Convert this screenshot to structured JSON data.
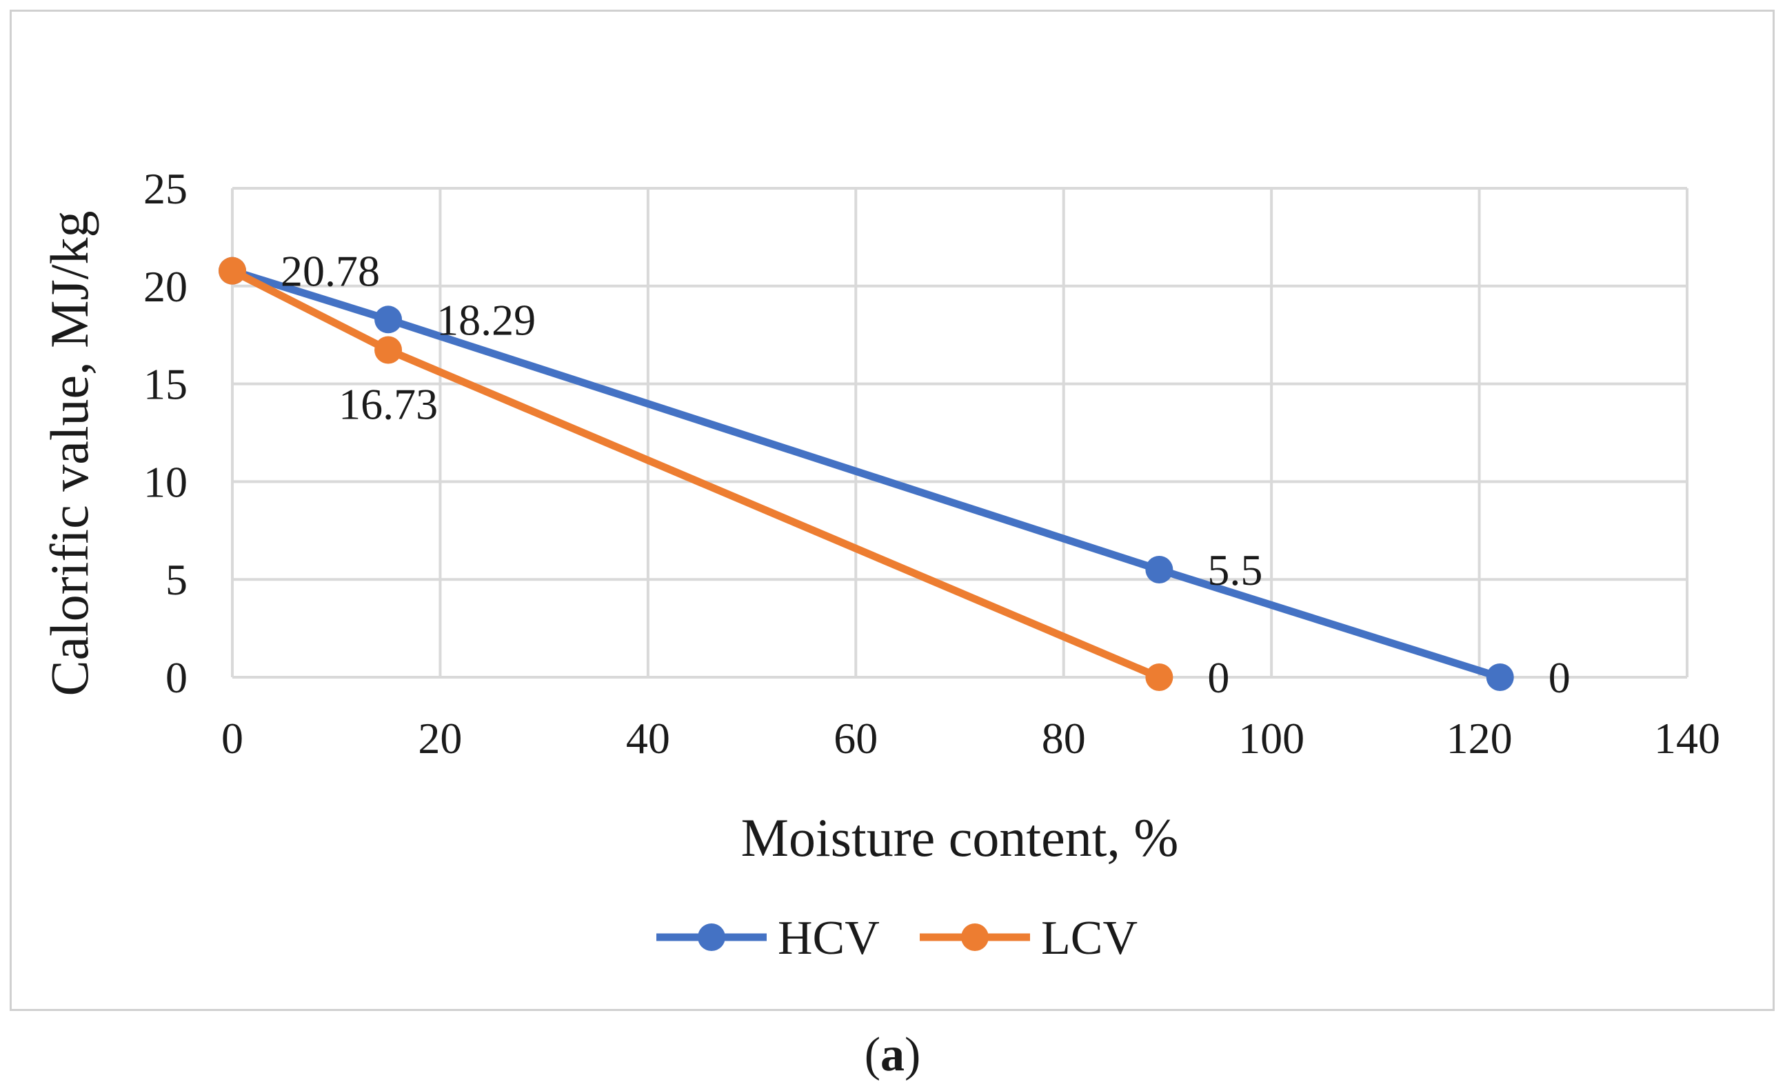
{
  "chart_data": {
    "type": "line",
    "title": "",
    "xlabel": "Moisture content, %",
    "ylabel": "Calorific value, MJ/kg",
    "xlim": [
      0,
      140
    ],
    "ylim": [
      0,
      25
    ],
    "x_ticks": [
      0,
      20,
      40,
      60,
      80,
      100,
      120,
      140
    ],
    "y_ticks": [
      0,
      5,
      10,
      15,
      20,
      25
    ],
    "grid": true,
    "legend_position": "bottom",
    "series": [
      {
        "name": "HCV",
        "color": "#4472C4",
        "x": [
          0,
          15,
          89.2,
          122
        ],
        "y": [
          20.78,
          18.29,
          5.5,
          0
        ],
        "labels": [
          "20.78",
          "18.29",
          "5.5",
          "0"
        ],
        "label_positions": [
          "right",
          "right",
          "right",
          "right"
        ]
      },
      {
        "name": "LCV",
        "color": "#ED7D31",
        "x": [
          0,
          15,
          89.2
        ],
        "y": [
          20.78,
          16.73,
          0
        ],
        "labels": [
          "",
          "16.73",
          "0"
        ],
        "label_positions": [
          "right",
          "below",
          "right"
        ]
      }
    ]
  },
  "caption": {
    "open": "(",
    "letter": "a",
    "close": ")"
  }
}
